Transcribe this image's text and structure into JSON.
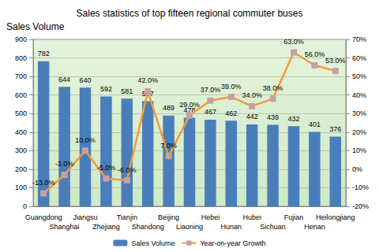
{
  "chart_data": {
    "type": "bar",
    "title": "Sales statistics of top fifteen regional commuter buses",
    "y_label": "Sales Volume",
    "categories": [
      "Guangdong",
      "Shanghai",
      "Jiangsu",
      "Zhejiang",
      "Tianjin",
      "Shandong",
      "Beijing",
      "Liaoning",
      "Hebei",
      "Hunan",
      "Hubei",
      "Sichuan",
      "Fujian",
      "Henan",
      "Heilongjiang"
    ],
    "series": [
      {
        "name": "Sales Volume",
        "type": "bar",
        "color": "#4a7ebb",
        "values": [
          782,
          644,
          640,
          592,
          581,
          567,
          489,
          478,
          467,
          462,
          442,
          439,
          432,
          401,
          376
        ]
      },
      {
        "name": "Year-on-year Growth",
        "type": "line",
        "axis": "y2",
        "color": "#f59a3a",
        "marker": "square",
        "values": [
          -13,
          -3,
          10,
          -5,
          -6,
          42,
          7,
          29,
          37,
          39,
          34,
          38,
          63,
          56,
          53
        ],
        "value_labels": [
          "-13.0%",
          "-3.0%",
          "10.0%",
          "-5.0%",
          "-6.0%",
          "42.0%",
          "7.0%",
          "29.0%",
          "37.0%",
          "39.0%",
          "34.0%",
          "38.0%",
          "63.0%",
          "56.0%",
          "53.0%"
        ]
      }
    ],
    "ylim": [
      0,
      900
    ],
    "yticks": [
      0,
      100,
      200,
      300,
      400,
      500,
      600,
      700,
      800,
      900
    ],
    "y2lim": [
      -20,
      70
    ],
    "y2ticks": [
      {
        "value": -20,
        "label": "-20%"
      },
      {
        "value": -10,
        "label": "-10%"
      },
      {
        "value": 0,
        "label": "0%"
      },
      {
        "value": 10,
        "label": "10%"
      },
      {
        "value": 20,
        "label": "20%"
      },
      {
        "value": 30,
        "label": "30%"
      },
      {
        "value": 40,
        "label": "40%"
      },
      {
        "value": 50,
        "label": "50%"
      },
      {
        "value": 60,
        "label": "60%"
      },
      {
        "value": 70,
        "label": "70%"
      }
    ],
    "grid": true,
    "legend": "bottom",
    "data_labels": true
  }
}
